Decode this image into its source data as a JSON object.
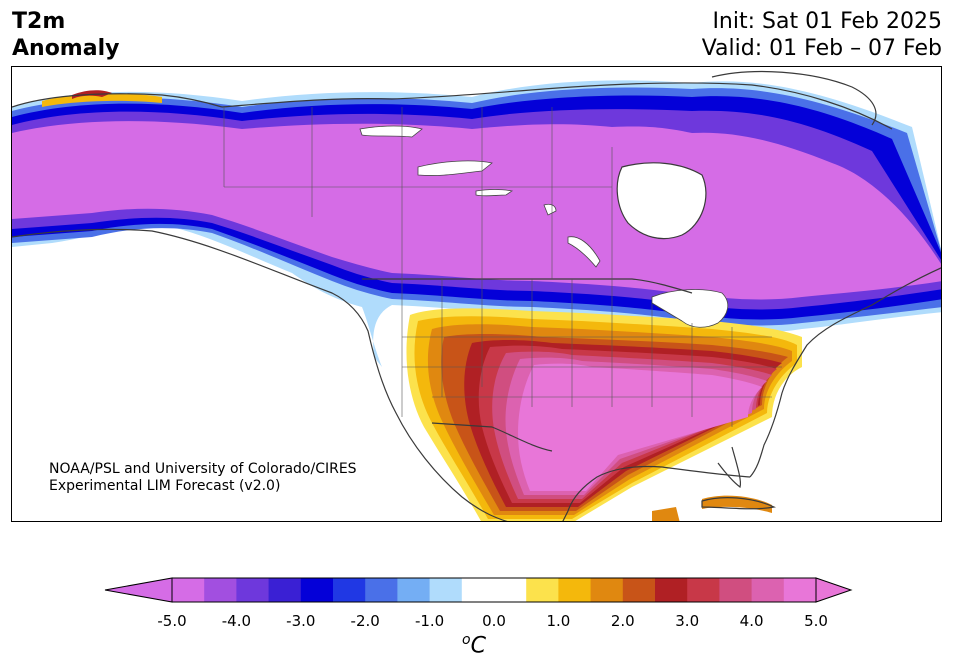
{
  "header": {
    "title_line1": "T2m",
    "title_line2": "Anomaly",
    "init": "Init: Sat 01 Feb 2025",
    "valid": "Valid: 01 Feb – 07 Feb"
  },
  "credit": {
    "line1": "NOAA/PSL and University of Colorado/CIRES",
    "line2": "Experimental LIM Forecast (v2.0)"
  },
  "colorbar": {
    "unit_base": "o",
    "unit_letter": "C",
    "ticks": [
      "-5.0",
      "-4.0",
      "-3.0",
      "-2.0",
      "-1.0",
      "0.0",
      "1.0",
      "2.0",
      "3.0",
      "4.0",
      "5.0"
    ],
    "colors": [
      "#d56ce6",
      "#a24fe0",
      "#6e38dc",
      "#3a20d4",
      "#0400d8",
      "#2038e4",
      "#4a70e8",
      "#74aef4",
      "#b0dcfc",
      "#ffffff",
      "#ffffff",
      "#fce24c",
      "#f4b80c",
      "#e08810",
      "#c85418",
      "#b02024",
      "#c83848",
      "#d04e80",
      "#dc62b0",
      "#e876d8"
    ],
    "under_color": "#d56ce6",
    "over_color": "#e876d8"
  },
  "map": {
    "region": "North America",
    "cold_anomaly_region": "Canada and Alaska (magenta core, blue fringe)",
    "warm_anomaly_region": "Central and southern United States, Mexico (yellow to red to pink)"
  }
}
